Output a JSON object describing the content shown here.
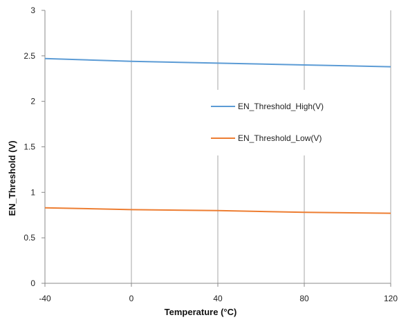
{
  "chart_data": {
    "type": "line",
    "title": "",
    "xlabel": "Temperature (°C)",
    "ylabel": "EN_Threshold (V)",
    "xlim": [
      -40,
      120
    ],
    "ylim": [
      0,
      3
    ],
    "x_ticks": [
      -40,
      0,
      40,
      80,
      120
    ],
    "x_tick_labels": [
      "-40",
      "0",
      "40",
      "80",
      "120"
    ],
    "y_ticks": [
      0,
      0.5,
      1,
      1.5,
      2,
      2.5,
      3
    ],
    "y_tick_labels": [
      "0",
      "0.5",
      "1",
      "1.5",
      "2",
      "2.5",
      "3"
    ],
    "grid": "vertical",
    "legend_position": "right",
    "series": [
      {
        "name": "EN_Threshold_High(V)",
        "color": "#5b9bd5",
        "x": [
          -40,
          0,
          40,
          80,
          120
        ],
        "y": [
          2.47,
          2.44,
          2.42,
          2.4,
          2.38
        ]
      },
      {
        "name": "EN_Threshold_Low(V)",
        "color": "#ed7d31",
        "x": [
          -40,
          0,
          40,
          80,
          120
        ],
        "y": [
          0.83,
          0.81,
          0.8,
          0.78,
          0.77
        ]
      }
    ]
  }
}
